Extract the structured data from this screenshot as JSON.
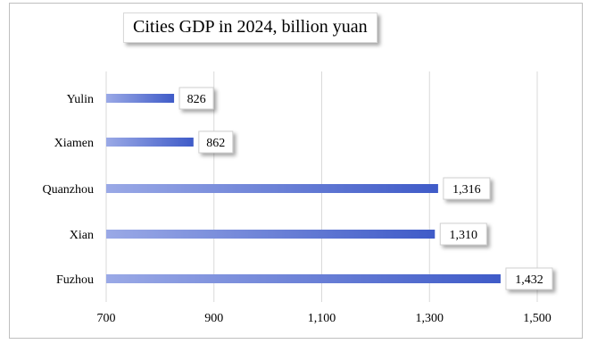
{
  "chart_data": {
    "type": "bar",
    "orientation": "horizontal",
    "title": "Cities GDP in 2024, billion yuan",
    "categories": [
      "Yulin",
      "Xiamen",
      "Quanzhou",
      "Xian",
      "Fuzhou"
    ],
    "values": [
      826,
      862,
      1316,
      1310,
      1432
    ],
    "value_labels": [
      "826",
      "862",
      "1,316",
      "1,310",
      "1,432"
    ],
    "xlim": [
      700,
      1500
    ],
    "xticks": [
      700,
      900,
      1100,
      1300,
      1500
    ],
    "xtick_labels": [
      "700",
      "900",
      "1,100",
      "1,300",
      "1,500"
    ],
    "grid": true,
    "bar_color_start": "#9aa9e6",
    "bar_color_end": "#3f5bc8"
  }
}
